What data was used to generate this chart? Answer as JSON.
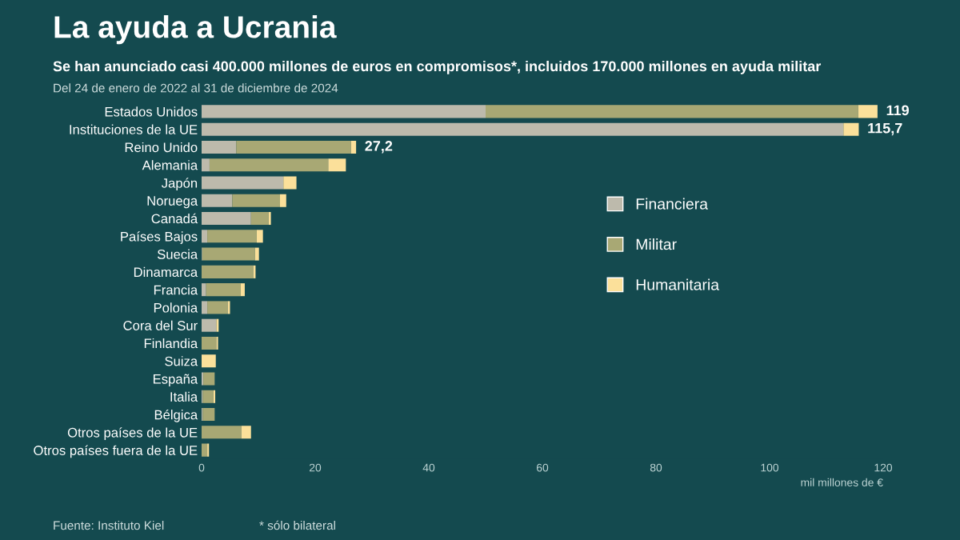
{
  "chart_data": {
    "type": "bar",
    "orientation": "horizontal",
    "stacked": true,
    "title": "La ayuda a Ucrania",
    "subtitle": "Se han anunciado casi 400.000 millones de euros en compromisos*, incluidos 170.000 millones en ayuda militar",
    "xlabel": "mil millones de €",
    "categories": [
      "Estados Unidos",
      "Instituciones de la UE",
      "Reino Unido",
      "Alemania",
      "Japón",
      "Noruega",
      "Canadá",
      "Países Bajos",
      "Suecia",
      "Dinamarca",
      "Francia",
      "Polonia",
      "Cora del Sur",
      "Finlandia",
      "Suiza",
      "España",
      "Italia",
      "Bélgica",
      "Otros países de la UE",
      "Otros países fuera de la UE"
    ],
    "series": [
      {
        "name": "Financiera",
        "color": "#bdbaac",
        "values": [
          50,
          113,
          6.1,
          1.4,
          14.4,
          5.4,
          8.7,
          1.0,
          0.1,
          0,
          0.8,
          1.0,
          2.6,
          0,
          0,
          0.3,
          0.2,
          0.2,
          0,
          0
        ]
      },
      {
        "name": "Militar",
        "color": "#a8a874",
        "values": [
          65.6,
          0,
          20.2,
          20.9,
          0,
          8.4,
          3.1,
          8.7,
          9.3,
          9.1,
          6.1,
          3.6,
          0,
          2.6,
          0,
          2.0,
          1.9,
          2.1,
          7.0,
          1.0
        ]
      },
      {
        "name": "Humanitaria",
        "color": "#fbe09a",
        "values": [
          3.4,
          2.7,
          0.9,
          3.1,
          2.3,
          1.1,
          0.4,
          1.1,
          0.7,
          0.4,
          0.7,
          0.4,
          0.4,
          0.3,
          2.5,
          0,
          0.3,
          0,
          1.7,
          0.3
        ]
      }
    ],
    "totals": [
      "119",
      "115,7",
      "27,2",
      null,
      null,
      null,
      null,
      null,
      null,
      null,
      null,
      null,
      null,
      null,
      null,
      null,
      null,
      null,
      null,
      null
    ],
    "xlim": [
      0,
      120
    ],
    "xticks": [
      0,
      20,
      40,
      60,
      80,
      100,
      120
    ],
    "grid": false,
    "legend": "right",
    "annotations": [
      "Del 24 de enero de 2022 al 31 de diciembre de 2024",
      "Fuente: Instituto Kiel",
      "* sólo bilateral"
    ]
  }
}
